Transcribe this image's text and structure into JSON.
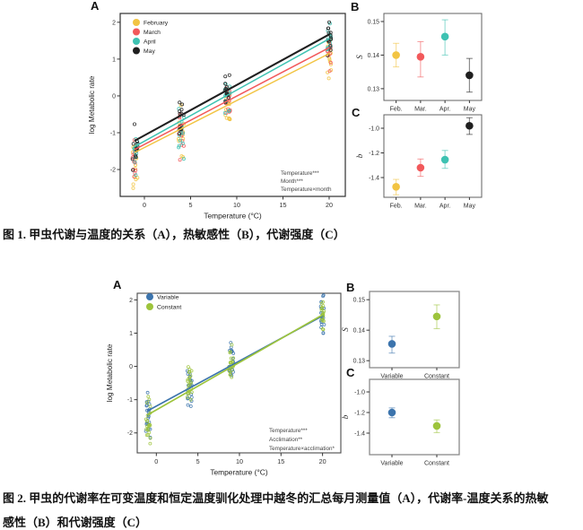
{
  "captions": {
    "fig1": "图 1. 甲虫代谢与温度的关系（A），热敏感性（B），代谢强度（C）",
    "fig2": "图 2. 甲虫的代谢率在可变温度和恒定温度驯化处理中越冬的汇总每月测量值（A），代谢率-温度关系的热敏感性（B）和代谢强度（C）"
  },
  "colors": {
    "february": "#F2C443",
    "march": "#F2595B",
    "april": "#3EC2B2",
    "may": "#1F1F1F",
    "variable": "#3C74AD",
    "constant": "#9DC43C"
  },
  "chart_data": [
    {
      "id": "fig1A",
      "type": "scatter",
      "panel_label": "A",
      "xlabel": "Temperature (°C)",
      "ylabel": "log Metabolic rate",
      "xlim": [
        -2.62,
        21.75
      ],
      "ylim": [
        -2.73,
        2.24
      ],
      "xticks": [
        0,
        5,
        10,
        15,
        20
      ],
      "xtick_labels": [
        "0",
        "5",
        "10",
        "15",
        "20"
      ],
      "yticks": [
        -2,
        -1,
        0,
        1,
        2
      ],
      "ytick_labels": [
        "-2",
        "-1",
        "0",
        "1",
        "2"
      ],
      "grid": false,
      "legend_position": "top-left",
      "cluster_x": [
        -1,
        4,
        9,
        20
      ],
      "cluster_offset": [
        -0.3,
        -0.18,
        -0.05,
        -0.03
      ],
      "cluster_sd": [
        0.4,
        0.42,
        0.3,
        0.3
      ],
      "cluster_jitter": [
        0.3,
        0.3,
        0.3,
        0.22
      ],
      "points_per_cluster": 13,
      "series": [
        {
          "name": "February",
          "color": "#F2C443",
          "line": [
            [
              -1,
              -1.53
            ],
            [
              20,
              1.15
            ]
          ],
          "line_width": 1.5
        },
        {
          "name": "March",
          "color": "#F2595B",
          "line": [
            [
              -1,
              -1.45
            ],
            [
              20,
              1.31
            ]
          ],
          "line_width": 1.5
        },
        {
          "name": "April",
          "color": "#3EC2B2",
          "line": [
            [
              -1,
              -1.37
            ],
            [
              20,
              1.55
            ]
          ],
          "line_width": 1.5
        },
        {
          "name": "May",
          "color": "#1F1F1F",
          "line": [
            [
              -1,
              -1.21
            ],
            [
              20,
              1.67
            ]
          ],
          "line_width": 2.1
        }
      ],
      "annotations": [
        "Temperature***",
        "Month***",
        "Temperature×month"
      ]
    },
    {
      "id": "fig1B",
      "type": "pointrange",
      "panel_label": "B",
      "ylabel": "S",
      "ylim": [
        0.1265,
        0.1524
      ],
      "yticks": [
        0.13,
        0.14,
        0.15
      ],
      "ytick_labels": [
        "0.13",
        "0.14",
        "0.15"
      ],
      "categories": [
        "Feb.",
        "Mar.",
        "Apr.",
        "May"
      ],
      "points": [
        {
          "category": "Feb.",
          "color": "#F2C443",
          "value": 0.14,
          "lo": 0.1365,
          "hi": 0.1435
        },
        {
          "category": "Mar.",
          "color": "#F2595B",
          "value": 0.1395,
          "lo": 0.1335,
          "hi": 0.144
        },
        {
          "category": "Apr.",
          "color": "#3EC2B2",
          "value": 0.1455,
          "lo": 0.14,
          "hi": 0.1505
        },
        {
          "category": "May",
          "color": "#1F1F1F",
          "value": 0.134,
          "lo": 0.129,
          "hi": 0.139
        }
      ]
    },
    {
      "id": "fig1C",
      "type": "pointrange",
      "panel_label": "C",
      "ylabel": "b",
      "ylim": [
        -1.56,
        -0.891
      ],
      "yticks": [
        -1.4,
        -1.2,
        -1.0
      ],
      "ytick_labels": [
        "-1.4",
        "-1.2",
        "-1.0"
      ],
      "categories": [
        "Feb.",
        "Mar.",
        "Apr.",
        "May"
      ],
      "points": [
        {
          "category": "Feb.",
          "color": "#F2C443",
          "value": -1.475,
          "lo": -1.54,
          "hi": -1.415
        },
        {
          "category": "Mar.",
          "color": "#F2595B",
          "value": -1.32,
          "lo": -1.39,
          "hi": -1.25
        },
        {
          "category": "Apr.",
          "color": "#3EC2B2",
          "value": -1.255,
          "lo": -1.325,
          "hi": -1.18
        },
        {
          "category": "May",
          "color": "#1F1F1F",
          "value": -0.98,
          "lo": -1.05,
          "hi": -0.915
        }
      ]
    },
    {
      "id": "fig2A",
      "type": "scatter",
      "panel_label": "A",
      "xlabel": "Temperature (°C)",
      "ylabel": "log Metabolic rate",
      "xlim": [
        -2.3,
        22.2
      ],
      "ylim": [
        -2.6,
        2.2
      ],
      "xticks": [
        0,
        5,
        10,
        15,
        20
      ],
      "xtick_labels": [
        "0",
        "5",
        "10",
        "15",
        "20"
      ],
      "yticks": [
        -2,
        -1,
        0,
        1,
        2
      ],
      "ytick_labels": [
        "-2",
        "-1",
        "0",
        "1",
        "2"
      ],
      "grid": false,
      "legend_position": "top-left",
      "cluster_x": [
        -1,
        4,
        9,
        20
      ],
      "cluster_offset": [
        -0.18,
        0.1,
        0.14,
        -0.02
      ],
      "cluster_sd": [
        0.42,
        0.42,
        0.32,
        0.32
      ],
      "cluster_jitter": [
        0.28,
        0.28,
        0.28,
        0.22
      ],
      "points_per_cluster": 22,
      "series": [
        {
          "name": "Variable",
          "color": "#3C74AD",
          "line": [
            [
              -1,
              -1.33
            ],
            [
              20,
              1.52
            ]
          ],
          "line_width": 1.7
        },
        {
          "name": "Constant",
          "color": "#9DC43C",
          "line": [
            [
              -1,
              -1.45
            ],
            [
              20,
              1.55
            ]
          ],
          "line_width": 1.7
        }
      ],
      "annotations": [
        "Temperature***",
        "Acclimation**",
        "Temperature×acclimation*"
      ]
    },
    {
      "id": "fig2B",
      "type": "pointrange",
      "panel_label": "B",
      "ylabel": "S",
      "ylim": [
        0.1277,
        0.1527
      ],
      "yticks": [
        0.13,
        0.14,
        0.15
      ],
      "ytick_labels": [
        "0.13",
        "0.14",
        "0.15"
      ],
      "categories": [
        "Variable",
        "Constant"
      ],
      "points": [
        {
          "category": "Variable",
          "color": "#3C74AD",
          "value": 0.1355,
          "lo": 0.1325,
          "hi": 0.138
        },
        {
          "category": "Constant",
          "color": "#9DC43C",
          "value": 0.1445,
          "lo": 0.1405,
          "hi": 0.1483
        }
      ]
    },
    {
      "id": "fig2C",
      "type": "pointrange",
      "panel_label": "C",
      "ylabel": "b",
      "ylim": [
        -1.609,
        -0.878
      ],
      "yticks": [
        -1.4,
        -1.2,
        -1.0
      ],
      "ytick_labels": [
        "-1.4",
        "-1.2",
        "-1.0"
      ],
      "categories": [
        "Variable",
        "Constant"
      ],
      "points": [
        {
          "category": "Variable",
          "color": "#3C74AD",
          "value": -1.2,
          "lo": -1.25,
          "hi": -1.155
        },
        {
          "category": "Constant",
          "color": "#9DC43C",
          "value": -1.33,
          "lo": -1.395,
          "hi": -1.272
        }
      ]
    }
  ]
}
